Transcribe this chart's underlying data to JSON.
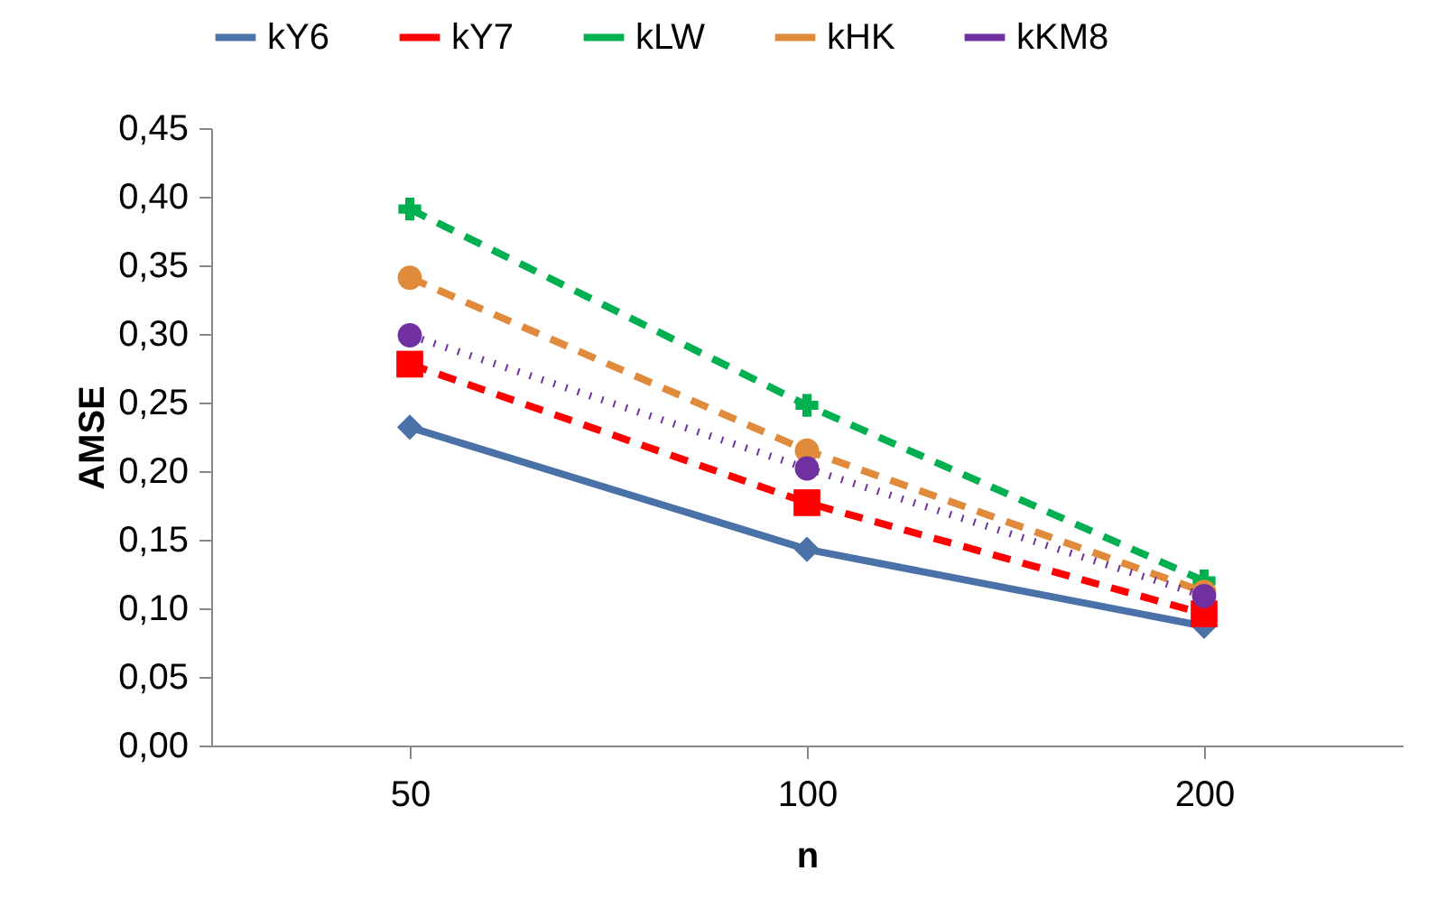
{
  "chart_data": {
    "type": "line",
    "xlabel": "n",
    "ylabel": "AMSE",
    "categories": [
      "50",
      "100",
      "200"
    ],
    "ylim": [
      0,
      0.45
    ],
    "yticks": [
      {
        "value": 0,
        "label": "0,00"
      },
      {
        "value": 0.05,
        "label": "0,05"
      },
      {
        "value": 0.1,
        "label": "0,10"
      },
      {
        "value": 0.15,
        "label": "0,15"
      },
      {
        "value": 0.2,
        "label": "0,20"
      },
      {
        "value": 0.25,
        "label": "0,25"
      },
      {
        "value": 0.3,
        "label": "0,30"
      },
      {
        "value": 0.35,
        "label": "0,35"
      },
      {
        "value": 0.4,
        "label": "0,40"
      },
      {
        "value": 0.45,
        "label": "0,45"
      }
    ],
    "grid": false,
    "legend": "top",
    "series": [
      {
        "name": "kY6",
        "color": "#4a72a8",
        "marker": "diamond",
        "line_style": "solid",
        "values": [
          0.232,
          0.143,
          0.087
        ]
      },
      {
        "name": "kY7",
        "color": "#ff0000",
        "marker": "square",
        "line_style": "dashed",
        "values": [
          0.278,
          0.177,
          0.096
        ]
      },
      {
        "name": "kLW",
        "color": "#00b050",
        "marker": "cross",
        "line_style": "dashed",
        "values": [
          0.391,
          0.248,
          0.12
        ]
      },
      {
        "name": "kHK",
        "color": "#e08a3c",
        "marker": "circle",
        "line_style": "dashed",
        "values": [
          0.341,
          0.215,
          0.112
        ]
      },
      {
        "name": "kKM8",
        "color": "#7030a0",
        "marker": "circle",
        "line_style": "dotted",
        "values": [
          0.299,
          0.202,
          0.109
        ]
      }
    ]
  }
}
